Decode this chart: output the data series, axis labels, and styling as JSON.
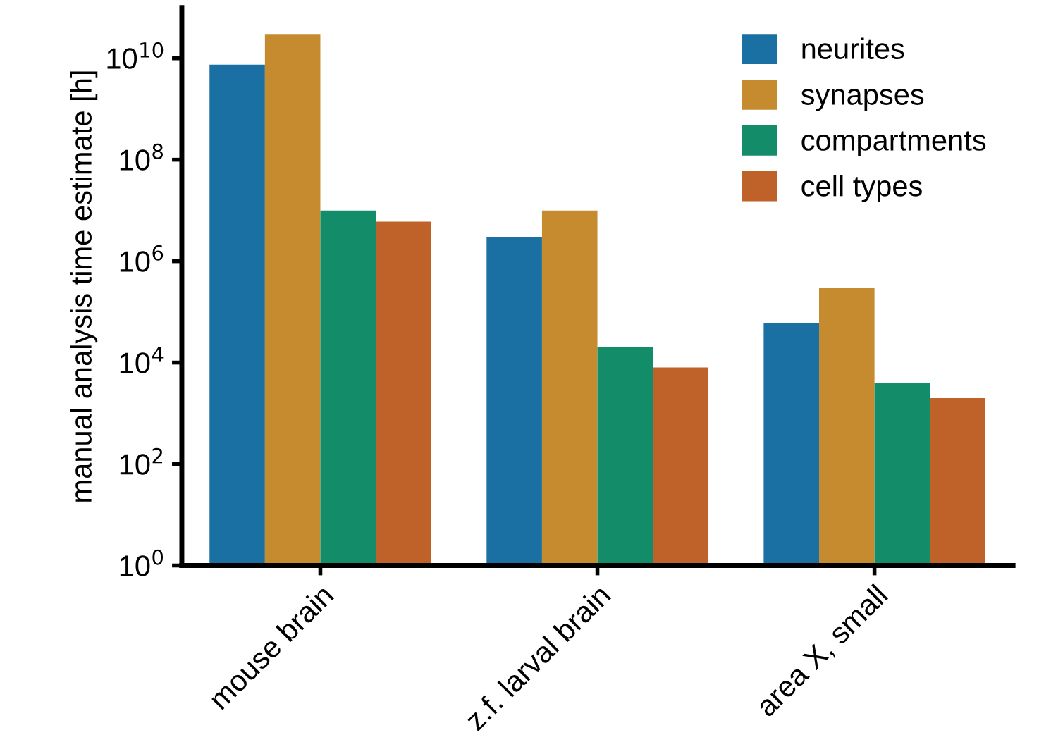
{
  "chart_data": {
    "type": "bar",
    "ylabel": "manual analysis time estimate [h]",
    "categories": [
      "mouse brain",
      "z.f. larval brain",
      "area X, small"
    ],
    "series": [
      {
        "name": "neurites",
        "color": "#1a6fa3",
        "values": [
          7500000000.0,
          3000000.0,
          60000.0
        ]
      },
      {
        "name": "synapses",
        "color": "#c68b2e",
        "values": [
          30000000000.0,
          10000000.0,
          300000.0
        ]
      },
      {
        "name": "compartments",
        "color": "#138c6a",
        "values": [
          10000000.0,
          20000.0,
          4000.0
        ]
      },
      {
        "name": "cell types",
        "color": "#bf622a",
        "values": [
          6000000.0,
          8000.0,
          2000.0
        ]
      }
    ],
    "log": "y",
    "ylim": [
      1,
      100000000000.0
    ],
    "yticks": [
      {
        "value": 1,
        "label": "10$^{0}$"
      },
      {
        "value": 100,
        "label": "10$^{2}$"
      },
      {
        "value": 10000,
        "label": "10$^{4}$"
      },
      {
        "value": 1000000,
        "label": "10$^{6}$"
      },
      {
        "value": 100000000,
        "label": "10$^{8}$"
      },
      {
        "value": 10000000000,
        "label": "10$^{10}$"
      }
    ],
    "grid": false,
    "legend": "top right"
  }
}
